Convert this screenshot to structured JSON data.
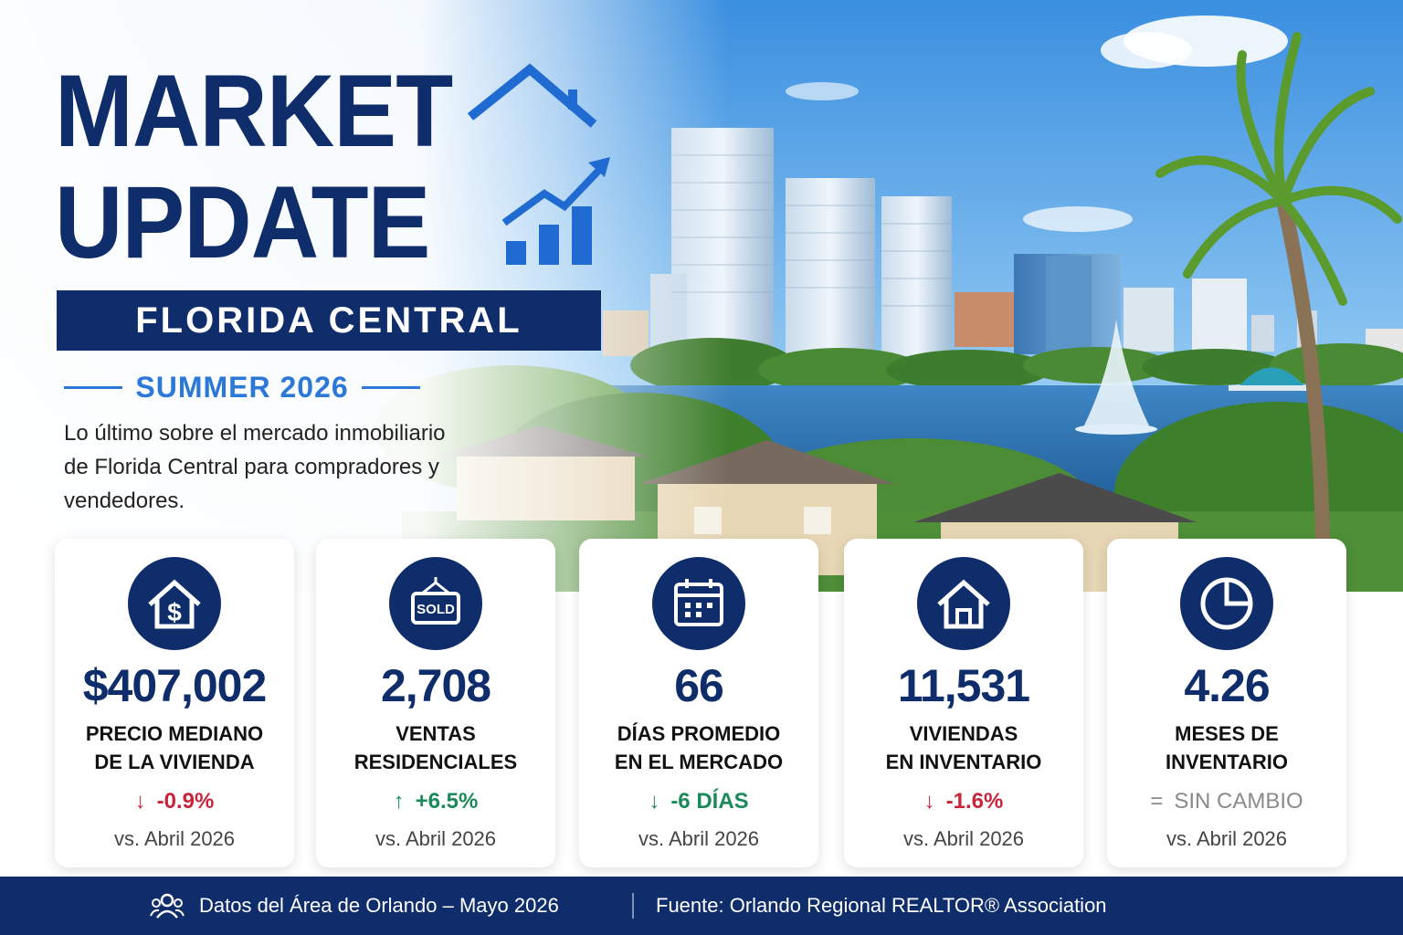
{
  "title_line1": "MARKET",
  "title_line2": "UPDATE",
  "region": "FLORIDA CENTRAL",
  "season": "SUMMER 2026",
  "intro": "Lo último sobre el mercado inmobiliario de Florida Central para compradores y vendedores.",
  "colors": {
    "navy": "#0f2d6b",
    "accent_blue": "#2b78d8",
    "negative": "#c8243a",
    "positive": "#1a8a5a",
    "neutral": "#8a8a8a"
  },
  "stats": [
    {
      "icon": "house-dollar-icon",
      "value": "$407,002",
      "label_line1": "PRECIO MEDIANO",
      "label_line2": "DE LA VIVIENDA",
      "change_arrow": "↓",
      "change": "-0.9%",
      "trend": "negative",
      "comparison": "vs. Abril 2026"
    },
    {
      "icon": "sold-sign-icon",
      "icon_text": "SOLD",
      "value": "2,708",
      "label_line1": "VENTAS",
      "label_line2": "RESIDENCIALES",
      "change_arrow": "↑",
      "change": "+6.5%",
      "trend": "positive",
      "comparison": "vs. Abril 2026"
    },
    {
      "icon": "calendar-icon",
      "value": "66",
      "label_line1": "DÍAS PROMEDIO",
      "label_line2": "EN EL MERCADO",
      "change_arrow": "↓",
      "change": "-6 DÍAS",
      "trend": "positive",
      "comparison": "vs. Abril 2026"
    },
    {
      "icon": "house-icon",
      "value": "11,531",
      "label_line1": "VIVIENDAS",
      "label_line2": "EN INVENTARIO",
      "change_arrow": "↓",
      "change": "-1.6%",
      "trend": "negative",
      "comparison": "vs. Abril 2026"
    },
    {
      "icon": "pie-chart-icon",
      "value": "4.26",
      "label_line1": "MESES DE",
      "label_line2": "INVENTARIO",
      "change_arrow": "=",
      "change": "SIN CAMBIO",
      "trend": "neutral",
      "comparison": "vs. Abril 2026"
    }
  ],
  "footer": {
    "area": "Datos del Área de Orlando – Mayo 2026",
    "source": "Fuente:  Orlando Regional REALTOR® Association"
  }
}
